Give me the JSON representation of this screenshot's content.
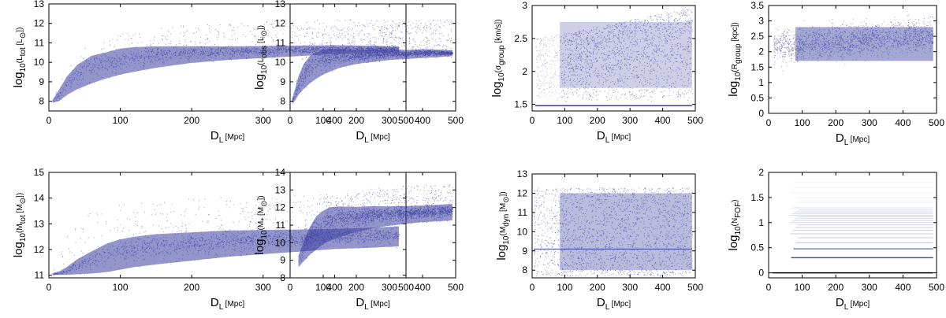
{
  "chart_data": [
    {
      "type": "scatter",
      "id": "ltot",
      "xlabel": "D_L [Mpc]",
      "ylabel": "log10(L_tot [L_sun])",
      "xlim": [
        0,
        500
      ],
      "ylim": [
        7.5,
        13
      ],
      "xticks": [
        "0",
        "100",
        "200",
        "300",
        "400",
        "500"
      ],
      "yticks": [
        "8",
        "9",
        "10",
        "11",
        "12",
        "13"
      ],
      "xtick_values": [
        0,
        100,
        200,
        300,
        400,
        500
      ],
      "ytick_values": [
        8,
        9,
        10,
        11,
        12,
        13
      ],
      "point_color": "#3a3ea0",
      "grid": false,
      "series": [
        {
          "points_x": [
            5,
            15,
            25,
            40,
            60,
            80,
            100,
            120,
            150,
            200,
            250,
            300,
            350,
            400,
            450,
            490
          ],
          "lower_envelope": [
            7.9,
            8.0,
            8.3,
            8.6,
            8.9,
            9.15,
            9.35,
            9.5,
            9.7,
            9.95,
            10.1,
            10.2,
            10.3,
            10.4,
            10.45,
            10.5
          ],
          "upper_envelope": [
            8.2,
            9.0,
            9.8,
            10.6,
            11.0,
            11.3,
            11.5,
            11.6,
            11.8,
            11.95,
            12.05,
            12.1,
            12.15,
            12.2,
            12.2,
            12.2
          ],
          "dense_center": [
            8.0,
            8.4,
            8.9,
            9.4,
            9.8,
            10.0,
            10.2,
            10.3,
            10.4,
            10.5,
            10.55,
            10.6,
            10.65,
            10.7,
            10.7,
            10.7
          ]
        }
      ]
    },
    {
      "type": "scatter",
      "id": "lobs",
      "xlabel": "D_L [Mpc]",
      "ylabel": "log10(L_obs [L_sun])",
      "xlim": [
        0,
        500
      ],
      "ylim": [
        7.5,
        13
      ],
      "xticks": [
        "0",
        "100",
        "200",
        "300",
        "400",
        "500"
      ],
      "yticks": [
        "8",
        "9",
        "10",
        "11",
        "12",
        "13"
      ],
      "xtick_values": [
        0,
        100,
        200,
        300,
        400,
        500
      ],
      "ytick_values": [
        8,
        9,
        10,
        11,
        12,
        13
      ],
      "point_color": "#3a3ea0",
      "grid": false,
      "series": [
        {
          "points_x": [
            5,
            15,
            25,
            40,
            60,
            80,
            100,
            120,
            150,
            200,
            250,
            300,
            350,
            400,
            450,
            490
          ],
          "lower_envelope": [
            7.9,
            8.0,
            8.3,
            8.6,
            8.9,
            9.15,
            9.35,
            9.5,
            9.7,
            9.9,
            10.0,
            10.1,
            10.15,
            10.2,
            10.25,
            10.3
          ],
          "upper_envelope": [
            8.2,
            9.0,
            9.8,
            10.6,
            11.0,
            11.3,
            11.5,
            11.6,
            11.8,
            11.95,
            12.05,
            12.1,
            12.15,
            12.2,
            12.2,
            12.2
          ],
          "dense_center": [
            8.0,
            8.4,
            8.9,
            9.4,
            9.8,
            10.0,
            10.15,
            10.25,
            10.3,
            10.35,
            10.4,
            10.45,
            10.45,
            10.5,
            10.5,
            10.5
          ]
        }
      ]
    },
    {
      "type": "scatter",
      "id": "sigma",
      "xlabel": "D_L [Mpc]",
      "ylabel": "log10(σ_group [km/s])",
      "xlim": [
        0,
        500
      ],
      "ylim": [
        1.4,
        3
      ],
      "xticks": [
        "0",
        "100",
        "200",
        "300",
        "400",
        "500"
      ],
      "yticks": [
        "1.5",
        "2",
        "2.5",
        "3"
      ],
      "xtick_values": [
        0,
        100,
        200,
        300,
        400,
        500
      ],
      "ytick_values": [
        1.5,
        2,
        2.5,
        3
      ],
      "point_color": "#3a3ea0",
      "grid": false,
      "floor_line": 1.48,
      "series": [
        {
          "x_start": 10,
          "dense_start": 85,
          "x_end": 490,
          "y_low": 1.55,
          "y_high_start": 2.5,
          "y_high_end": 2.97
        }
      ]
    },
    {
      "type": "scatter",
      "id": "rgroup",
      "xlabel": "D_L [Mpc]",
      "ylabel": "log10(R_group [kpc])",
      "xlim": [
        0,
        500
      ],
      "ylim": [
        0,
        3.5
      ],
      "xticks": [
        "0",
        "100",
        "200",
        "300",
        "400",
        "500"
      ],
      "yticks": [
        "0",
        "0.5",
        "1",
        "1.5",
        "2",
        "2.5",
        "3",
        "3.5"
      ],
      "xtick_values": [
        0,
        100,
        200,
        300,
        400,
        500
      ],
      "ytick_values": [
        0,
        0.5,
        1,
        1.5,
        2,
        2.5,
        3,
        3.5
      ],
      "point_color": "#3a3ea0",
      "grid": false,
      "series": [
        {
          "x_start": 15,
          "dense_start": 80,
          "x_end": 490,
          "center_start": 2.2,
          "center_end": 2.55,
          "spread": 0.45
        }
      ]
    },
    {
      "type": "scatter",
      "id": "mtot",
      "xlabel": "D_L [Mpc]",
      "ylabel": "log10(M_tot [M_sun])",
      "xlim": [
        0,
        500
      ],
      "ylim": [
        10.9,
        15
      ],
      "xticks": [
        "0",
        "100",
        "200",
        "300",
        "400",
        "500"
      ],
      "yticks": [
        "11",
        "12",
        "13",
        "14",
        "15"
      ],
      "xtick_values": [
        0,
        100,
        200,
        300,
        400,
        500
      ],
      "ytick_values": [
        11,
        12,
        13,
        14,
        15
      ],
      "point_color": "#3a3ea0",
      "grid": false,
      "series": [
        {
          "points_x": [
            5,
            15,
            25,
            40,
            60,
            80,
            100,
            120,
            150,
            200,
            250,
            300,
            350,
            400,
            450,
            490
          ],
          "lower_envelope": [
            11.0,
            11.0,
            11.0,
            11.02,
            11.05,
            11.1,
            11.2,
            11.3,
            11.4,
            11.55,
            11.7,
            11.8,
            11.9,
            12.0,
            12.05,
            12.1
          ],
          "upper_envelope": [
            11.3,
            11.8,
            12.5,
            13.2,
            13.5,
            13.7,
            13.8,
            13.85,
            13.9,
            14.0,
            14.05,
            14.1,
            14.15,
            14.2,
            14.2,
            14.2
          ],
          "dense_center": [
            11.05,
            11.1,
            11.2,
            11.4,
            11.6,
            11.8,
            11.95,
            12.05,
            12.15,
            12.25,
            12.35,
            12.4,
            12.45,
            12.5,
            12.55,
            12.6
          ]
        }
      ]
    },
    {
      "type": "scatter",
      "id": "mstar",
      "xlabel": "D_L [Mpc]",
      "ylabel": "log10(M* [M_sun])",
      "xlim": [
        0,
        500
      ],
      "ylim": [
        8,
        14
      ],
      "xticks": [
        "0",
        "100",
        "200",
        "300",
        "400",
        "500"
      ],
      "yticks": [
        "8",
        "9",
        "10",
        "11",
        "12",
        "13",
        "14"
      ],
      "xtick_values": [
        0,
        100,
        200,
        300,
        400,
        500
      ],
      "ytick_values": [
        8,
        9,
        10,
        11,
        12,
        13,
        14
      ],
      "point_color": "#3a3ea0",
      "grid": false,
      "series": [
        {
          "points_x": [
            25,
            35,
            45,
            60,
            80,
            100,
            120,
            150,
            200,
            250,
            300,
            350,
            400,
            450,
            490
          ],
          "lower_envelope": [
            8.6,
            8.8,
            9.0,
            9.3,
            9.6,
            9.9,
            10.1,
            10.3,
            10.6,
            10.8,
            10.95,
            11.05,
            11.15,
            11.2,
            11.25
          ],
          "upper_envelope": [
            9.5,
            10.2,
            11.0,
            11.7,
            12.2,
            12.6,
            12.8,
            12.9,
            13.0,
            13.1,
            13.2,
            13.3,
            13.3,
            13.3,
            13.3
          ],
          "dense_center": [
            9.0,
            9.4,
            9.8,
            10.3,
            10.8,
            11.1,
            11.3,
            11.4,
            11.5,
            11.6,
            11.65,
            11.7,
            11.75,
            11.8,
            11.85
          ]
        }
      ]
    },
    {
      "type": "scatter",
      "id": "mdyn",
      "xlabel": "D_L [Mpc]",
      "ylabel": "log10(M_dyn [M_sun])",
      "xlim": [
        0,
        500
      ],
      "ylim": [
        7.6,
        13
      ],
      "xticks": [
        "0",
        "100",
        "200",
        "300",
        "400",
        "500"
      ],
      "yticks": [
        "8",
        "9",
        "10",
        "11",
        "12",
        "13"
      ],
      "xtick_values": [
        0,
        100,
        200,
        300,
        400,
        500
      ],
      "ytick_values": [
        8,
        9,
        10,
        11,
        12,
        13
      ],
      "point_color": "#3a3ea0",
      "grid": false,
      "band_line": 9.1,
      "series": [
        {
          "x_start": 5,
          "dense_start": 85,
          "x_end": 490,
          "y_low": 7.7,
          "y_high": 12.3
        }
      ]
    },
    {
      "type": "scatter",
      "id": "nfof",
      "xlabel": "D_L [Mpc]",
      "ylabel": "log10(N_FOF)",
      "xlim": [
        0,
        500
      ],
      "ylim": [
        -0.1,
        2
      ],
      "xticks": [
        "0",
        "100",
        "200",
        "300",
        "400",
        "500"
      ],
      "yticks": [
        "0",
        "0.5",
        "1",
        "1.5",
        "2"
      ],
      "xtick_values": [
        0,
        100,
        200,
        300,
        400,
        500
      ],
      "ytick_values": [
        0,
        0.5,
        1,
        1.5,
        2
      ],
      "point_color": "#3a3ea0",
      "grid": false,
      "discrete_levels": [
        0,
        0.301,
        0.477,
        0.602,
        0.699,
        0.778,
        0.845,
        0.903,
        0.954,
        1.0,
        1.041,
        1.079,
        1.114,
        1.146,
        1.176,
        1.204,
        1.23,
        1.255,
        1.279,
        1.301,
        1.4,
        1.5,
        1.6,
        1.7,
        1.8
      ],
      "series": [
        {
          "x_start": 10,
          "x_end": 490
        }
      ]
    }
  ]
}
